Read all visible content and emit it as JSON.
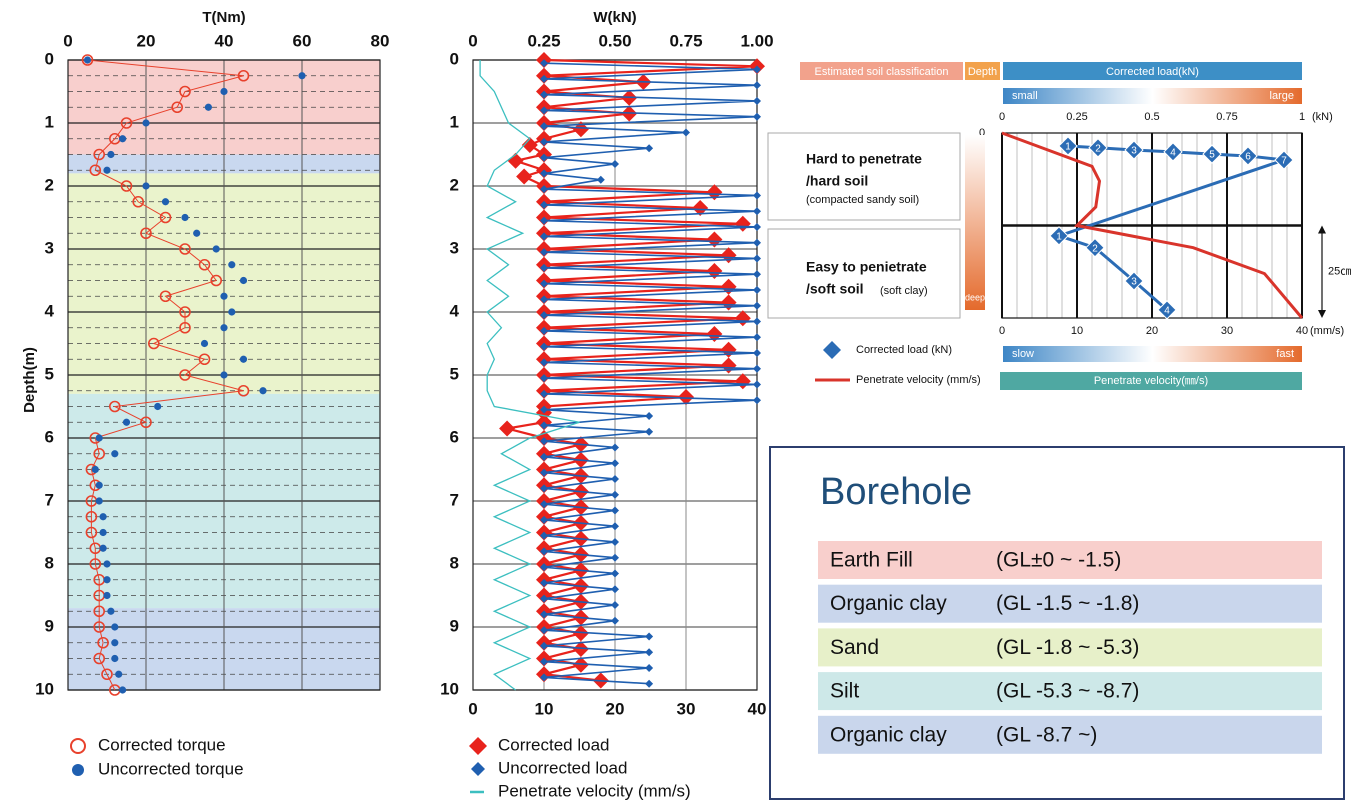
{
  "chart_data": [
    {
      "type": "depth-profile",
      "title": "T(Nm)",
      "ylabel": "Depth(m)",
      "xlim": [
        0,
        80
      ],
      "xticks": [
        0,
        20,
        40,
        60,
        80
      ],
      "ylim": [
        0,
        10
      ],
      "yticks": [
        0,
        1,
        2,
        3,
        4,
        5,
        6,
        7,
        8,
        9,
        10
      ],
      "minor_grid_step": 0.25,
      "layers": [
        {
          "from": 0,
          "to": 1.5,
          "color": "#f8cfcd"
        },
        {
          "from": 1.5,
          "to": 1.8,
          "color": "#c9d8ef"
        },
        {
          "from": 1.8,
          "to": 5.3,
          "color": "#eaf3cc"
        },
        {
          "from": 5.3,
          "to": 8.7,
          "color": "#cdeaea"
        },
        {
          "from": 8.7,
          "to": 10,
          "color": "#c9d8ef"
        }
      ],
      "series": [
        {
          "name": "Corrected torque",
          "color": "#e8412c",
          "marker": "open-circle",
          "line": true,
          "x": [
            5,
            45,
            30,
            28,
            15,
            12,
            8,
            7,
            15,
            18,
            25,
            20,
            30,
            35,
            38,
            25,
            30,
            30,
            22,
            35,
            30,
            45,
            12,
            20,
            7,
            8,
            6,
            7,
            6,
            6,
            6,
            7,
            7,
            8,
            8,
            8,
            8,
            9,
            8,
            10,
            12
          ],
          "y": [
            0,
            0.25,
            0.5,
            0.75,
            1,
            1.25,
            1.5,
            1.75,
            2,
            2.25,
            2.5,
            2.75,
            3,
            3.25,
            3.5,
            3.75,
            4,
            4.25,
            4.5,
            4.75,
            5,
            5.25,
            5.5,
            5.75,
            6,
            6.25,
            6.5,
            6.75,
            7,
            7.25,
            7.5,
            7.75,
            8,
            8.25,
            8.5,
            8.75,
            9,
            9.25,
            9.5,
            9.75,
            10
          ]
        },
        {
          "name": "Uncorrected torque",
          "color": "#1f5fb0",
          "marker": "dot",
          "line": false,
          "x": [
            5,
            60,
            40,
            36,
            20,
            14,
            11,
            10,
            20,
            25,
            30,
            33,
            38,
            42,
            45,
            40,
            42,
            40,
            35,
            45,
            40,
            50,
            23,
            15,
            8,
            12,
            7,
            8,
            8,
            9,
            9,
            9,
            10,
            10,
            10,
            11,
            12,
            12,
            12,
            13,
            14
          ],
          "y": [
            0,
            0.25,
            0.5,
            0.75,
            1,
            1.25,
            1.5,
            1.75,
            2,
            2.25,
            2.5,
            2.75,
            3,
            3.25,
            3.5,
            3.75,
            4,
            4.25,
            4.5,
            4.75,
            5,
            5.25,
            5.5,
            5.75,
            6,
            6.25,
            6.5,
            6.75,
            7,
            7.25,
            7.5,
            7.75,
            8,
            8.25,
            8.5,
            8.75,
            9,
            9.25,
            9.5,
            9.75,
            10
          ]
        }
      ]
    },
    {
      "type": "depth-profile",
      "title": "W(kN)",
      "xlim": [
        0,
        1
      ],
      "xticks": [
        0,
        0.25,
        {
          "value": 0.5,
          "label": "0.50"
        },
        0.75,
        {
          "value": 1,
          "label": "1.00"
        }
      ],
      "x2lim": [
        0,
        40
      ],
      "x2ticks": [
        0,
        10,
        20,
        30,
        40
      ],
      "ylim": [
        0,
        10
      ],
      "yticks": [
        0,
        1,
        2,
        3,
        4,
        5,
        6,
        7,
        8,
        9,
        10
      ],
      "series": [
        {
          "name": "Corrected load",
          "color": "#e8231c",
          "marker": "diamond",
          "line": true,
          "x": [
            0.25,
            1,
            0.25,
            0.6,
            0.25,
            0.55,
            0.25,
            0.55,
            0.25,
            0.38,
            0.25,
            0.2,
            0.25,
            0.15,
            0.25,
            0.18,
            0.25,
            0.85,
            0.25,
            0.8,
            0.25,
            0.95,
            0.25,
            0.85,
            0.25,
            0.9,
            0.25,
            0.85,
            0.25,
            0.9,
            0.25,
            0.9,
            0.25,
            0.95,
            0.25,
            0.85,
            0.25,
            0.9,
            0.25,
            0.9,
            0.25,
            0.95,
            0.25,
            0.75,
            0.25,
            0.25,
            0.25,
            0.12,
            0.25,
            0.38,
            0.25,
            0.38,
            0.25,
            0.38,
            0.25,
            0.38,
            0.25,
            0.38,
            0.25,
            0.38,
            0.25,
            0.38,
            0.25,
            0.38,
            0.25,
            0.38,
            0.25,
            0.38,
            0.25,
            0.38,
            0.25,
            0.38,
            0.25,
            0.38,
            0.25,
            0.38,
            0.25,
            0.38,
            0.25,
            0.45
          ],
          "y": [
            0,
            0.1,
            0.25,
            0.35,
            0.5,
            0.6,
            0.75,
            0.85,
            1,
            1.1,
            1.25,
            1.35,
            1.5,
            1.6,
            1.75,
            1.85,
            2,
            2.1,
            2.25,
            2.35,
            2.5,
            2.6,
            2.75,
            2.85,
            3,
            3.1,
            3.25,
            3.35,
            3.5,
            3.6,
            3.75,
            3.85,
            4,
            4.1,
            4.25,
            4.35,
            4.5,
            4.6,
            4.75,
            4.85,
            5,
            5.1,
            5.25,
            5.35,
            5.5,
            5.6,
            5.75,
            5.85,
            6,
            6.1,
            6.25,
            6.35,
            6.5,
            6.6,
            6.75,
            6.85,
            7,
            7.1,
            7.25,
            7.35,
            7.5,
            7.6,
            7.75,
            7.85,
            8,
            8.1,
            8.25,
            8.35,
            8.5,
            8.6,
            8.75,
            8.85,
            9,
            9.1,
            9.25,
            9.35,
            9.5,
            9.6,
            9.75,
            9.85
          ]
        },
        {
          "name": "Uncorrected load",
          "color": "#1f5fb0",
          "marker": "small-diamond",
          "line": true,
          "x": [
            0.25,
            1,
            0.25,
            1,
            0.25,
            1,
            0.25,
            1,
            0.25,
            0.75,
            0.25,
            0.62,
            0.25,
            0.5,
            0.25,
            0.45,
            0.25,
            1,
            0.25,
            1,
            0.25,
            1,
            0.25,
            1,
            0.25,
            1,
            0.25,
            1,
            0.25,
            1,
            0.25,
            1,
            0.25,
            1,
            0.25,
            1,
            0.25,
            1,
            0.25,
            1,
            0.25,
            1,
            0.25,
            1,
            0.25,
            0.62,
            0.25,
            0.62,
            0.25,
            0.5,
            0.25,
            0.5,
            0.25,
            0.5,
            0.25,
            0.5,
            0.25,
            0.5,
            0.25,
            0.5,
            0.25,
            0.5,
            0.25,
            0.5,
            0.25,
            0.5,
            0.25,
            0.5,
            0.25,
            0.5,
            0.25,
            0.5,
            0.25,
            0.62,
            0.25,
            0.62,
            0.25,
            0.62,
            0.25,
            0.62
          ],
          "y": [
            0.05,
            0.15,
            0.3,
            0.4,
            0.55,
            0.65,
            0.8,
            0.9,
            1.05,
            1.15,
            1.3,
            1.4,
            1.55,
            1.65,
            1.8,
            1.9,
            2.05,
            2.15,
            2.3,
            2.4,
            2.55,
            2.65,
            2.8,
            2.9,
            3.05,
            3.15,
            3.3,
            3.4,
            3.55,
            3.65,
            3.8,
            3.9,
            4.05,
            4.15,
            4.3,
            4.4,
            4.55,
            4.65,
            4.8,
            4.9,
            5.05,
            5.15,
            5.3,
            5.4,
            5.55,
            5.65,
            5.8,
            5.9,
            6.05,
            6.15,
            6.3,
            6.4,
            6.55,
            6.65,
            6.8,
            6.9,
            7.05,
            7.15,
            7.3,
            7.4,
            7.55,
            7.65,
            7.8,
            7.9,
            8.05,
            8.15,
            8.3,
            8.4,
            8.55,
            8.65,
            8.8,
            8.9,
            9.05,
            9.15,
            9.3,
            9.4,
            9.55,
            9.65,
            9.8,
            9.9
          ]
        },
        {
          "name": "Penetrate velocity (mm/s)",
          "color": "#3cbfc0",
          "marker": "none",
          "line": true,
          "axis": "x2",
          "x": [
            1,
            1,
            3,
            4,
            5,
            8,
            6,
            3,
            2,
            6,
            2,
            7,
            2,
            5,
            2,
            5,
            2,
            4,
            2,
            3,
            2,
            2,
            3,
            15,
            8,
            4,
            8,
            3,
            8,
            3,
            8,
            3,
            8,
            3,
            8,
            3,
            8,
            3,
            8,
            3,
            6
          ],
          "y": [
            0,
            0.25,
            0.5,
            0.75,
            1,
            1.25,
            1.5,
            1.75,
            2,
            2.25,
            2.5,
            2.75,
            3,
            3.25,
            3.5,
            3.75,
            4,
            4.25,
            4.5,
            4.75,
            5,
            5.25,
            5.5,
            5.75,
            6,
            6.25,
            6.5,
            6.75,
            7,
            7.25,
            7.5,
            7.75,
            8,
            8.25,
            8.5,
            8.75,
            9,
            9.25,
            9.5,
            9.75,
            10
          ]
        }
      ]
    },
    {
      "type": "legend-diagram",
      "column_headers": [
        "Estimated soil classification",
        "Depth",
        "Corrected load(kN)"
      ],
      "load_scale_labels": [
        "small",
        "large"
      ],
      "velocity_scale_labels": [
        "slow",
        "fast"
      ],
      "depth_scale_label": "deep",
      "xlim": [
        0,
        1
      ],
      "xticks": [
        0,
        0.25,
        0.5,
        0.75,
        1
      ],
      "xunit": "(kN)",
      "x2lim": [
        0,
        40
      ],
      "x2ticks": [
        0,
        10,
        20,
        30,
        40
      ],
      "x2unit": "(mm/s)",
      "x2title": "Penetrate velocity(㎜/s)",
      "x2_minor_step": 2,
      "ylim": [
        0,
        50
      ],
      "yticks": [
        0
      ],
      "divider": 25,
      "bracket_label": "25㎝",
      "zones": [
        {
          "line1": "Hard to penetrate",
          "line2": "/hard soil",
          "note": "(compacted sandy soil)"
        },
        {
          "line1": "Easy to penietrate",
          "line2": "/soft soil",
          "note": "(soft clay)"
        }
      ],
      "series": [
        {
          "name": "Corrected load (kN)",
          "color": "#2b6cb5",
          "x": [
            0.22,
            0.32,
            0.44,
            0.57,
            0.7,
            0.82,
            0.94,
            0.19,
            0.31,
            0.44,
            0.55
          ],
          "y": [
            3.5,
            4,
            4.6,
            5.1,
            5.7,
            6.2,
            7.3,
            27.8,
            31,
            40,
            47.8
          ],
          "labels": [
            "1",
            "2",
            "3",
            "4",
            "5",
            "6",
            "7",
            "1",
            "2",
            "3",
            "4"
          ]
        },
        {
          "name": "Penetrate velocity (mm/s)",
          "color": "#d9342b",
          "axis": "x2",
          "x": [
            0,
            12,
            13,
            12.5,
            10,
            25.5,
            35,
            40
          ],
          "y": [
            0,
            9,
            13,
            20,
            25,
            31,
            38,
            50
          ]
        }
      ]
    }
  ],
  "borehole": {
    "title": "Borehole",
    "rows": [
      {
        "name": "Earth Fill",
        "range": "(GL±0  ~ -1.5)",
        "color": "#f8cfcc"
      },
      {
        "name": "Organic clay",
        "range": "(GL -1.5 ~ -1.8)",
        "color": "#c9d6ec"
      },
      {
        "name": "Sand",
        "range": "(GL -1.8 ~ -5.3)",
        "color": "#e7f0c9"
      },
      {
        "name": "Silt",
        "range": "(GL -5.3 ~ -8.7)",
        "color": "#cde8e8"
      },
      {
        "name": "Organic clay",
        "range": "(GL -8.7 ~)",
        "color": "#c9d6ec"
      }
    ]
  }
}
